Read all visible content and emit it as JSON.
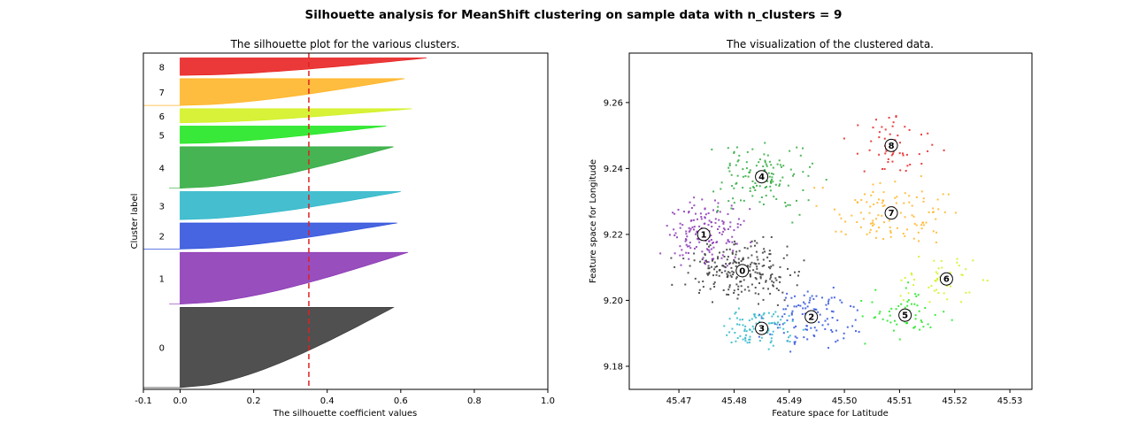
{
  "suptitle": "Silhouette analysis for MeanShift clustering on sample data with n_clusters = 9",
  "chart_data": [
    {
      "type": "area",
      "title": "The silhouette plot for the various clusters.",
      "xlabel": "The silhouette coefficient values",
      "ylabel": "Cluster label",
      "xlim": [
        -0.1,
        1.0
      ],
      "xticks": [
        "-0.1",
        "0.0",
        "0.2",
        "0.4",
        "0.6",
        "0.8",
        "1.0"
      ],
      "xtick_values": [
        -0.1,
        0.0,
        0.2,
        0.4,
        0.6,
        0.8,
        1.0
      ],
      "average_silhouette": 0.35,
      "clusters": [
        {
          "label": "0",
          "color": "#383838",
          "size": 240,
          "min": -0.1,
          "max": 0.58
        },
        {
          "label": "1",
          "color": "#8a35b4",
          "size": 155,
          "min": -0.03,
          "max": 0.62
        },
        {
          "label": "2",
          "color": "#2e50dc",
          "size": 78,
          "min": -0.1,
          "max": 0.59
        },
        {
          "label": "3",
          "color": "#2bb6c8",
          "size": 84,
          "min": 0.0,
          "max": 0.6
        },
        {
          "label": "4",
          "color": "#2eaa3c",
          "size": 124,
          "min": -0.03,
          "max": 0.58
        },
        {
          "label": "5",
          "color": "#1ee61e",
          "size": 52,
          "min": 0.0,
          "max": 0.56
        },
        {
          "label": "6",
          "color": "#d2f01e",
          "size": 42,
          "min": 0.0,
          "max": 0.63
        },
        {
          "label": "7",
          "color": "#ffb424",
          "size": 80,
          "min": -0.1,
          "max": 0.61
        },
        {
          "label": "8",
          "color": "#e81e1e",
          "size": 52,
          "min": 0.0,
          "max": 0.67
        }
      ]
    },
    {
      "type": "scatter",
      "title": "The visualization of the clustered data.",
      "xlabel": "Feature space for Latitude",
      "ylabel": "Feature space for Longitude",
      "xlim": [
        45.461,
        45.534
      ],
      "ylim": [
        9.173,
        9.275
      ],
      "xticks": [
        "45.47",
        "45.48",
        "45.49",
        "45.50",
        "45.51",
        "45.52",
        "45.53"
      ],
      "xtick_values": [
        45.47,
        45.48,
        45.49,
        45.5,
        45.51,
        45.52,
        45.53
      ],
      "yticks": [
        "9.18",
        "9.20",
        "9.22",
        "9.24",
        "9.26"
      ],
      "ytick_values": [
        9.18,
        9.2,
        9.22,
        9.24,
        9.26
      ],
      "clusters": [
        {
          "label": "0",
          "color": "#383838",
          "center": [
            45.4815,
            9.209
          ],
          "spread": [
            0.0065,
            0.0055
          ],
          "count": 230
        },
        {
          "label": "1",
          "color": "#8a35b4",
          "center": [
            45.4745,
            9.22
          ],
          "spread": [
            0.0045,
            0.0065
          ],
          "count": 160
        },
        {
          "label": "2",
          "color": "#2e50dc",
          "center": [
            45.494,
            9.195
          ],
          "spread": [
            0.005,
            0.006
          ],
          "count": 110
        },
        {
          "label": "3",
          "color": "#2bb6c8",
          "center": [
            45.485,
            9.1915
          ],
          "spread": [
            0.0045,
            0.0045
          ],
          "count": 90
        },
        {
          "label": "4",
          "color": "#2eaa3c",
          "center": [
            45.485,
            9.2375
          ],
          "spread": [
            0.006,
            0.007
          ],
          "count": 130
        },
        {
          "label": "5",
          "color": "#1ee61e",
          "center": [
            45.511,
            9.1955
          ],
          "spread": [
            0.0055,
            0.0045
          ],
          "count": 60
        },
        {
          "label": "6",
          "color": "#d2f01e",
          "center": [
            45.5185,
            9.2065
          ],
          "spread": [
            0.005,
            0.0045
          ],
          "count": 50
        },
        {
          "label": "7",
          "color": "#ffb424",
          "center": [
            45.5085,
            9.2265
          ],
          "spread": [
            0.0075,
            0.006
          ],
          "count": 110
        },
        {
          "label": "8",
          "color": "#e81e1e",
          "center": [
            45.5085,
            9.247
          ],
          "spread": [
            0.0045,
            0.006
          ],
          "count": 55
        }
      ]
    }
  ]
}
